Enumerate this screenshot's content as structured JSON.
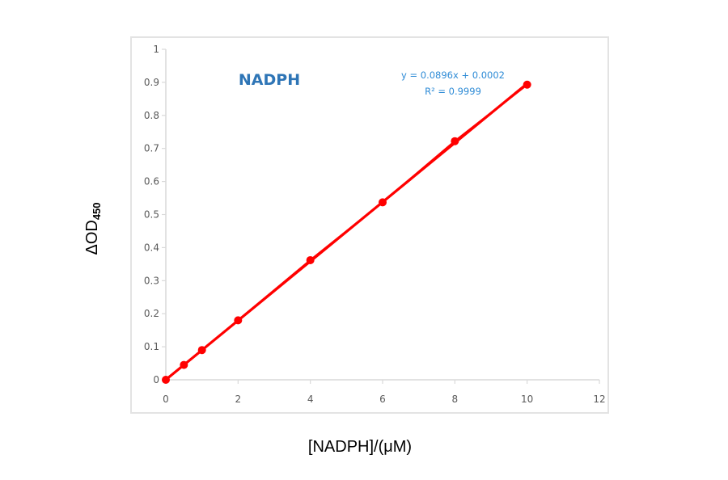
{
  "chart_data": {
    "type": "scatter",
    "title": "NADPH",
    "xlabel": "[NADPH]/(μM)",
    "ylabel": "ΔOD450",
    "ylabel_main": "ΔOD",
    "ylabel_sub": "450",
    "xlim": [
      0,
      12
    ],
    "ylim": [
      0,
      1
    ],
    "x_ticks": [
      "0",
      "2",
      "4",
      "6",
      "8",
      "10",
      "12"
    ],
    "y_ticks": [
      "0",
      "0.1",
      "0.2",
      "0.3",
      "0.4",
      "0.5",
      "0.6",
      "0.7",
      "0.8",
      "0.9",
      "1"
    ],
    "grid": false,
    "legend": "none",
    "series": [
      {
        "name": "NADPH",
        "color": "#ff0000",
        "x": [
          0,
          0.5,
          1,
          2,
          4,
          6,
          8,
          10
        ],
        "y": [
          0.0,
          0.045,
          0.09,
          0.18,
          0.362,
          0.537,
          0.722,
          0.893
        ]
      }
    ],
    "trendline": {
      "type": "linear",
      "slope": 0.0896,
      "intercept": 0.0002,
      "equation": "y = 0.0896x + 0.0002",
      "r_squared_label": "R² = 0.9999"
    }
  },
  "colors": {
    "series": "#ff0000",
    "title": "#2e75b6",
    "equation": "#2e8bd6",
    "axis": "#d9d9d9",
    "tick_label": "#595959",
    "frame": "#e3e3e3"
  }
}
